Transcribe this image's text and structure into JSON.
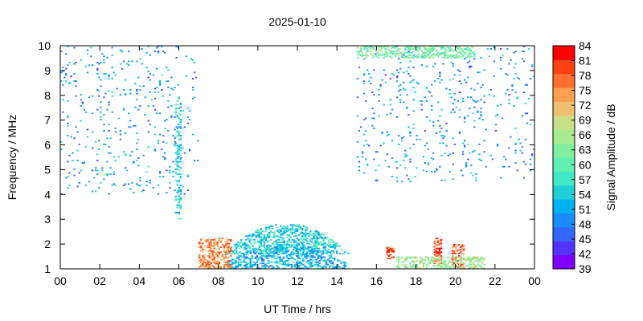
{
  "chart_data": {
    "type": "heatmap",
    "title": "2025-01-10",
    "xlabel": "UT Time / hrs",
    "ylabel": "Frequency / MHz",
    "colorbar_label": "Signal Amplitude / dB",
    "xlim": [
      0,
      24
    ],
    "ylim": [
      1,
      10
    ],
    "x_ticks": [
      "00",
      "02",
      "04",
      "06",
      "08",
      "10",
      "12",
      "14",
      "16",
      "18",
      "20",
      "22",
      "00"
    ],
    "y_ticks": [
      "1",
      "2",
      "3",
      "4",
      "5",
      "6",
      "7",
      "8",
      "9",
      "10"
    ],
    "colorbar_ticks": [
      "84",
      "81",
      "78",
      "75",
      "72",
      "69",
      "66",
      "63",
      "60",
      "57",
      "54",
      "51",
      "48",
      "45",
      "42",
      "39"
    ],
    "colorbar_range": [
      39,
      84
    ],
    "colorbar_colors": [
      "#7f00ff",
      "#5533ff",
      "#3366ff",
      "#1a8cff",
      "#00b0f0",
      "#20d0d8",
      "#40e8c8",
      "#60f0b0",
      "#80f0a0",
      "#a8ec90",
      "#c8e088",
      "#f0c070",
      "#ffa050",
      "#ff7030",
      "#ff4010",
      "#ff0000"
    ],
    "regions": [
      {
        "name": "daytime-absorption-arc-high",
        "t": [
          8.2,
          14.6
        ],
        "f": [
          1.6,
          2.8
        ],
        "amp": 55
      },
      {
        "name": "daytime-absorption-arc-low",
        "t": [
          8.0,
          14.8
        ],
        "f": [
          1.0,
          2.0
        ],
        "amp": 52
      },
      {
        "name": "dawn-strong-signal",
        "t": [
          7.0,
          8.6
        ],
        "f": [
          1.0,
          2.2
        ],
        "amp": 75
      },
      {
        "name": "spike-16-7h",
        "t": [
          16.5,
          16.9
        ],
        "f": [
          1.4,
          1.9
        ],
        "amp": 80
      },
      {
        "name": "spike-19h",
        "t": [
          18.9,
          19.3
        ],
        "f": [
          1.2,
          2.2
        ],
        "amp": 80
      },
      {
        "name": "spike-20h",
        "t": [
          19.8,
          20.4
        ],
        "f": [
          1.0,
          2.0
        ],
        "amp": 78
      },
      {
        "name": "evening-low-band",
        "t": [
          17.0,
          21.5
        ],
        "f": [
          1.0,
          1.5
        ],
        "amp": 65
      },
      {
        "name": "night-scatter-early",
        "t": [
          0.0,
          7.0
        ],
        "f": [
          4.0,
          10.0
        ],
        "amp": 50
      },
      {
        "name": "night-scatter-late",
        "t": [
          15.0,
          24.0
        ],
        "f": [
          4.5,
          10.0
        ],
        "amp": 50
      },
      {
        "name": "vertical-line-06h",
        "t": [
          5.8,
          6.1
        ],
        "f": [
          3.0,
          8.0
        ],
        "amp": 55
      },
      {
        "name": "top-band-late",
        "t": [
          15.0,
          21.0
        ],
        "f": [
          9.5,
          10.0
        ],
        "amp": 62
      }
    ]
  }
}
